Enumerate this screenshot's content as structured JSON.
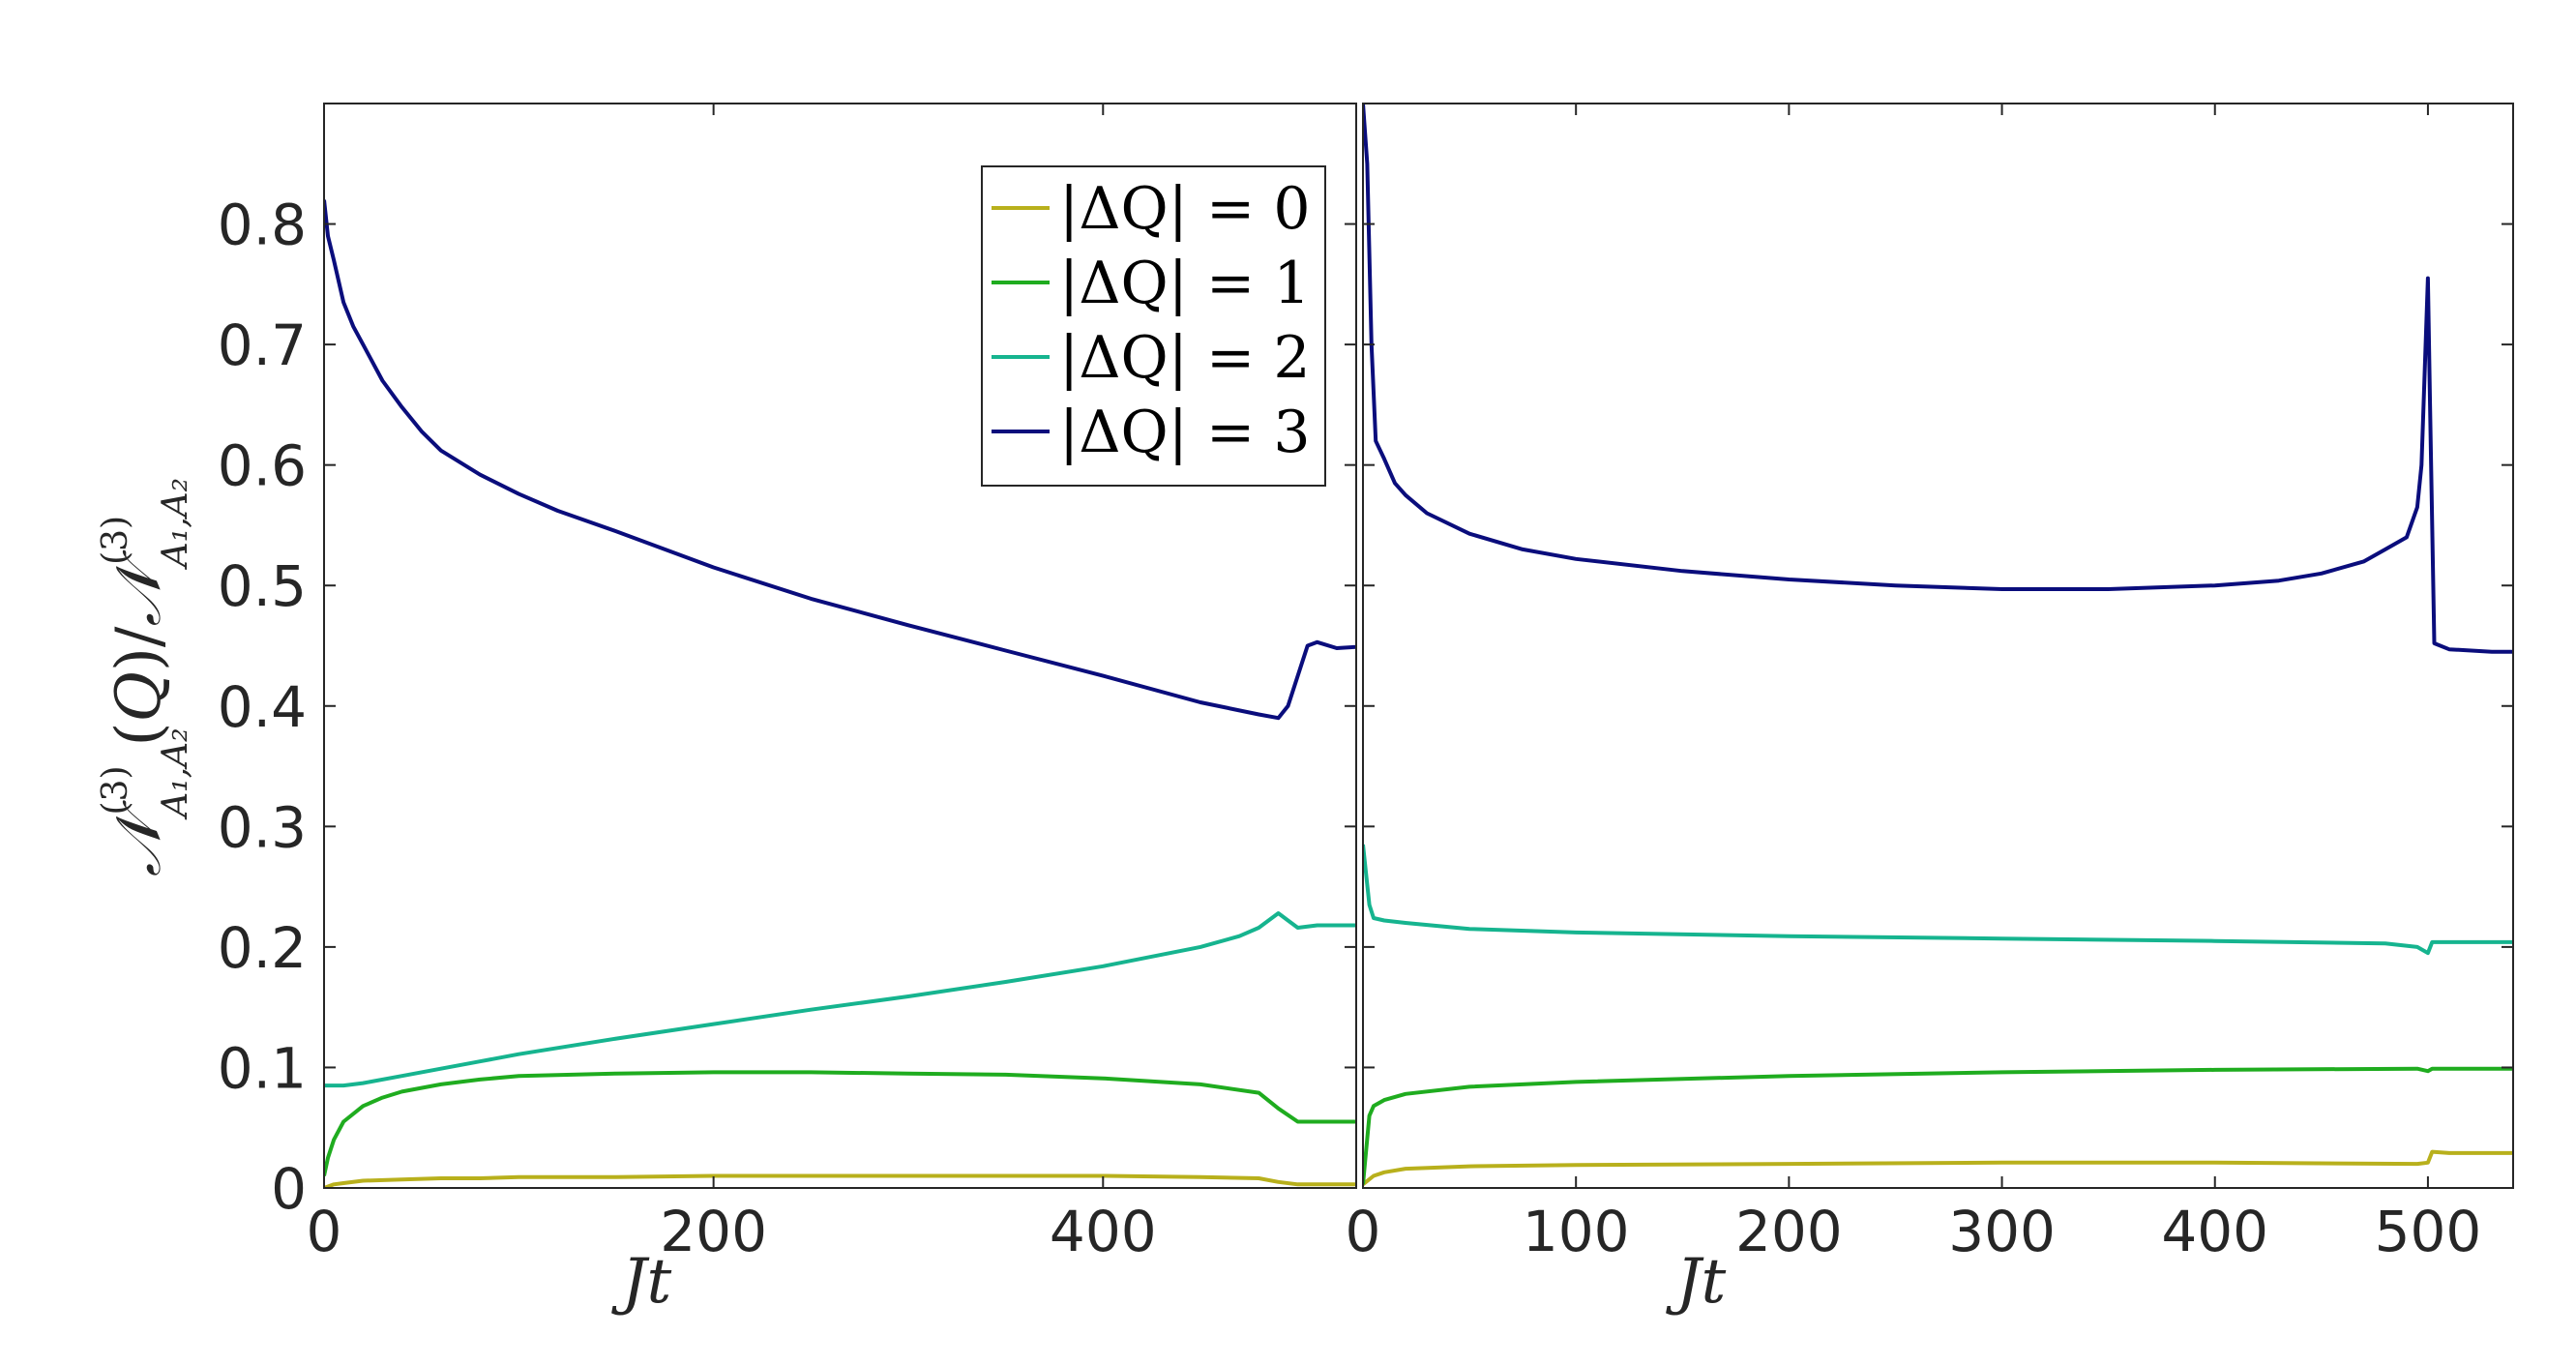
{
  "chart_data": [
    {
      "type": "line",
      "xlabel": "Jt",
      "ylabel": "N(3)A1,A2(Q)/N(3)A1,A2",
      "xlim": [
        0,
        530
      ],
      "ylim": [
        0,
        0.9
      ],
      "xticks": [
        0,
        200,
        400
      ],
      "yticks": [
        0,
        0.1,
        0.2,
        0.3,
        0.4,
        0.5,
        0.6,
        0.7,
        0.8
      ],
      "grid": false,
      "legend_position": "top-right",
      "series": [
        {
          "name": "|ΔQ| = 0",
          "color": "#b8b01c",
          "x": [
            0,
            5,
            10,
            20,
            40,
            60,
            80,
            100,
            150,
            200,
            250,
            300,
            350,
            400,
            450,
            480,
            490,
            500,
            510,
            530
          ],
          "y": [
            0.0,
            0.003,
            0.004,
            0.006,
            0.007,
            0.008,
            0.008,
            0.009,
            0.009,
            0.01,
            0.01,
            0.01,
            0.01,
            0.01,
            0.009,
            0.008,
            0.005,
            0.003,
            0.003,
            0.003
          ]
        },
        {
          "name": "|ΔQ| = 1",
          "color": "#1fac1f",
          "x": [
            0,
            2,
            5,
            10,
            20,
            30,
            40,
            60,
            80,
            100,
            150,
            200,
            250,
            300,
            350,
            400,
            450,
            480,
            490,
            500,
            510,
            530
          ],
          "y": [
            0.01,
            0.025,
            0.04,
            0.055,
            0.068,
            0.075,
            0.08,
            0.086,
            0.09,
            0.093,
            0.095,
            0.096,
            0.096,
            0.095,
            0.094,
            0.091,
            0.086,
            0.079,
            0.066,
            0.055,
            0.055,
            0.055
          ]
        },
        {
          "name": "|ΔQ| = 2",
          "color": "#16b48f",
          "x": [
            0,
            10,
            20,
            40,
            60,
            80,
            100,
            150,
            200,
            250,
            300,
            350,
            400,
            450,
            470,
            480,
            485,
            490,
            495,
            500,
            510,
            530
          ],
          "y": [
            0.085,
            0.085,
            0.087,
            0.093,
            0.099,
            0.105,
            0.111,
            0.124,
            0.136,
            0.148,
            0.159,
            0.171,
            0.184,
            0.2,
            0.209,
            0.216,
            0.222,
            0.228,
            0.222,
            0.216,
            0.218,
            0.218
          ]
        },
        {
          "name": "|ΔQ| = 3",
          "color": "#0a0d7c",
          "x": [
            0,
            2,
            5,
            10,
            15,
            20,
            30,
            40,
            50,
            60,
            80,
            100,
            120,
            150,
            200,
            250,
            300,
            350,
            400,
            450,
            480,
            490,
            495,
            500,
            505,
            510,
            520,
            530
          ],
          "y": [
            0.82,
            0.79,
            0.77,
            0.735,
            0.715,
            0.7,
            0.67,
            0.648,
            0.628,
            0.612,
            0.592,
            0.576,
            0.562,
            0.545,
            0.515,
            0.489,
            0.467,
            0.446,
            0.425,
            0.403,
            0.393,
            0.39,
            0.4,
            0.425,
            0.45,
            0.453,
            0.448,
            0.449
          ]
        }
      ]
    },
    {
      "type": "line",
      "xlabel": "Jt",
      "xlim": [
        0,
        540
      ],
      "ylim": [
        0,
        0.9
      ],
      "xticks": [
        0,
        100,
        200,
        300,
        400,
        500
      ],
      "grid": false,
      "series": [
        {
          "color": "#b8b01c",
          "x": [
            0,
            5,
            10,
            20,
            50,
            100,
            200,
            300,
            400,
            495,
            500,
            502,
            510,
            540
          ],
          "y": [
            0.003,
            0.01,
            0.013,
            0.016,
            0.018,
            0.019,
            0.02,
            0.021,
            0.021,
            0.02,
            0.021,
            0.03,
            0.029,
            0.029
          ]
        },
        {
          "color": "#1fac1f",
          "x": [
            0,
            3,
            5,
            10,
            20,
            50,
            100,
            200,
            300,
            400,
            495,
            500,
            502,
            540
          ],
          "y": [
            0.003,
            0.06,
            0.068,
            0.073,
            0.078,
            0.084,
            0.088,
            0.093,
            0.096,
            0.098,
            0.099,
            0.097,
            0.099,
            0.099
          ]
        },
        {
          "color": "#16b48f",
          "x": [
            0,
            3,
            5,
            10,
            20,
            50,
            100,
            200,
            300,
            400,
            480,
            495,
            500,
            502,
            540
          ],
          "y": [
            0.285,
            0.235,
            0.224,
            0.222,
            0.22,
            0.215,
            0.212,
            0.209,
            0.207,
            0.205,
            0.203,
            0.2,
            0.195,
            0.204,
            0.204
          ]
        },
        {
          "color": "#0a0d7c",
          "x": [
            0,
            2,
            4,
            6,
            10,
            15,
            20,
            30,
            50,
            75,
            100,
            150,
            200,
            250,
            300,
            350,
            400,
            430,
            450,
            470,
            480,
            490,
            495,
            497,
            500,
            501,
            503,
            510,
            530,
            540
          ],
          "y": [
            0.9,
            0.85,
            0.7,
            0.62,
            0.605,
            0.585,
            0.575,
            0.56,
            0.543,
            0.53,
            0.522,
            0.512,
            0.505,
            0.5,
            0.497,
            0.497,
            0.5,
            0.504,
            0.51,
            0.52,
            0.53,
            0.54,
            0.565,
            0.6,
            0.755,
            0.65,
            0.452,
            0.447,
            0.445,
            0.445
          ]
        }
      ]
    }
  ]
}
